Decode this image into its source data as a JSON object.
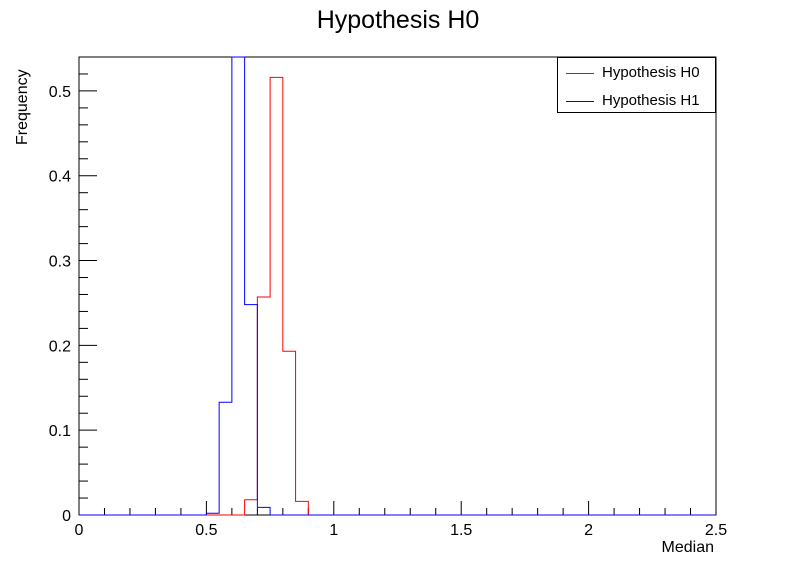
{
  "chart_data": {
    "type": "step",
    "title": "Hypothesis H0",
    "xlabel": "Median",
    "ylabel": "Frequency",
    "xlim": [
      0,
      2.5
    ],
    "ylim": [
      0,
      0.54
    ],
    "bin_width": 0.05,
    "x_ticks": [
      "0",
      "0.5",
      "1",
      "1.5",
      "2",
      "2.5"
    ],
    "y_ticks": [
      "0",
      "0.1",
      "0.2",
      "0.3",
      "0.4",
      "0.5"
    ],
    "legend_position": "top-right",
    "series": [
      {
        "name": "Hypothesis H0",
        "color": "#ff0000",
        "bins": [
          {
            "x": 0.65,
            "y": 0.018
          },
          {
            "x": 0.7,
            "y": 0.257
          },
          {
            "x": 0.75,
            "y": 0.516
          },
          {
            "x": 0.8,
            "y": 0.193
          },
          {
            "x": 0.85,
            "y": 0.016
          }
        ]
      },
      {
        "name": "Hypothesis H1",
        "color": "#0000ff",
        "bins": [
          {
            "x": 0.5,
            "y": 0.002
          },
          {
            "x": 0.55,
            "y": 0.133
          },
          {
            "x": 0.6,
            "y": 0.54
          },
          {
            "x": 0.65,
            "y": 0.248
          },
          {
            "x": 0.7,
            "y": 0.009
          }
        ]
      }
    ]
  }
}
